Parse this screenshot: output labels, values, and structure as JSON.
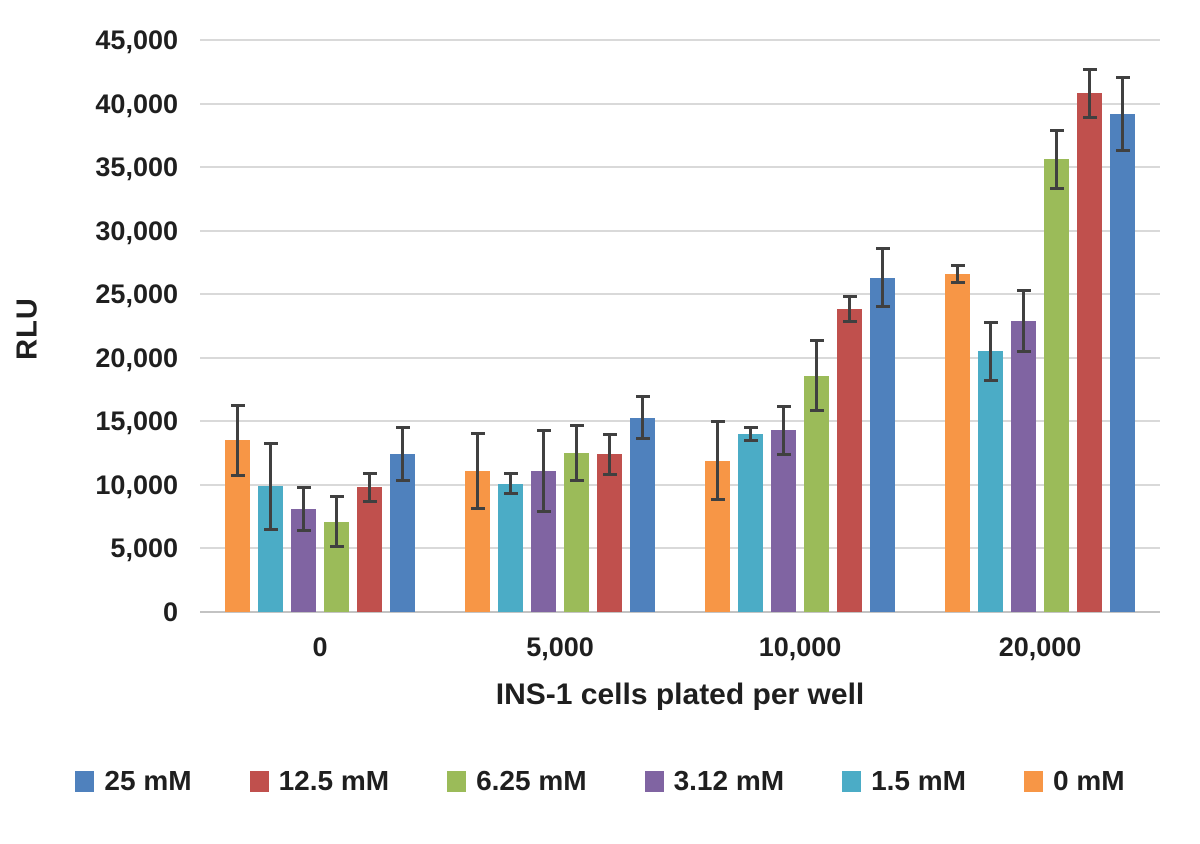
{
  "chart_data": {
    "type": "bar",
    "title": "",
    "xlabel": "INS-1 cells plated per well",
    "ylabel": "RLU",
    "ylim": [
      0,
      45000
    ],
    "grid": true,
    "legend_position": "bottom",
    "yticks": [
      0,
      5000,
      10000,
      15000,
      20000,
      25000,
      30000,
      35000,
      40000,
      45000
    ],
    "ytick_labels": [
      "0",
      "5,000",
      "10,000",
      "15,000",
      "20,000",
      "25,000",
      "30,000",
      "35,000",
      "40,000",
      "45,000"
    ],
    "categories": [
      "0",
      "5,000",
      "10,000",
      "20,000"
    ],
    "bar_order": [
      "0 mM",
      "1.5 mM",
      "3.12 mM",
      "6.25 mM",
      "12.5 mM",
      "25 mM"
    ],
    "series": [
      {
        "name": "25 mM",
        "color": "#4F81BD",
        "values": [
          12400,
          15300,
          26300,
          39200
        ],
        "errors": [
          2200,
          1800,
          2400,
          3000
        ]
      },
      {
        "name": "12.5 mM",
        "color": "#C0504D",
        "values": [
          9800,
          12400,
          23800,
          40800
        ],
        "errors": [
          1200,
          1700,
          1100,
          2000
        ]
      },
      {
        "name": "6.25 mM",
        "color": "#9BBB59",
        "values": [
          7100,
          12500,
          18600,
          35600
        ],
        "errors": [
          2100,
          2300,
          2900,
          2400
        ]
      },
      {
        "name": "3.12 mM",
        "color": "#8064A2",
        "values": [
          8100,
          11100,
          14300,
          22900
        ],
        "errors": [
          1800,
          3300,
          2000,
          2500
        ]
      },
      {
        "name": "1.5 mM",
        "color": "#4BACC6",
        "values": [
          9900,
          10100,
          14000,
          20500
        ],
        "errors": [
          3500,
          900,
          600,
          2400
        ]
      },
      {
        "name": "0 mM",
        "color": "#F79646",
        "values": [
          13500,
          11100,
          11900,
          26600
        ],
        "errors": [
          2900,
          3100,
          3200,
          800
        ]
      }
    ],
    "error_bar_color": "#404040",
    "gridline_color": "#D9D9D9"
  }
}
